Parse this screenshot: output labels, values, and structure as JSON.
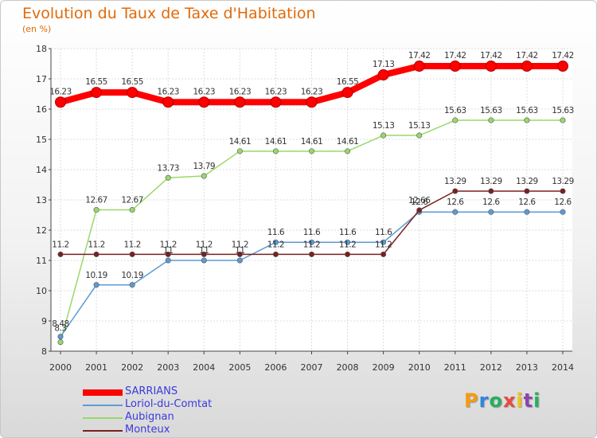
{
  "chart_data": {
    "type": "line",
    "title": "Evolution du Taux de Taxe d'Habitation",
    "unit_label": "(en %)",
    "x": [
      "2000",
      "2001",
      "2002",
      "2003",
      "2004",
      "2005",
      "2006",
      "2007",
      "2008",
      "2009",
      "2010",
      "2011",
      "2012",
      "2013",
      "2014"
    ],
    "ylim": [
      8,
      18
    ],
    "yticks": [
      8,
      9,
      10,
      11,
      12,
      13,
      14,
      15,
      16,
      17,
      18
    ],
    "grid": true,
    "legend_position": "bottom-left",
    "series": [
      {
        "name": "SARRIANS",
        "color": "#ff0000",
        "values": [
          16.23,
          16.55,
          16.55,
          16.23,
          16.23,
          16.23,
          16.23,
          16.23,
          16.55,
          17.13,
          17.42,
          17.42,
          17.42,
          17.42,
          17.42
        ],
        "labels": [
          "16.23",
          "16.55",
          "16.55",
          "16.23",
          "16.23",
          "16.23",
          "16.23",
          "16.23",
          "16.55",
          "17.13",
          "17.42",
          "17.42",
          "17.42",
          "17.42",
          "17.42"
        ]
      },
      {
        "name": "Loriol-du-Comtat",
        "color": "#5b9bd5",
        "values": [
          8.48,
          10.19,
          10.19,
          11,
          11,
          11,
          11.6,
          11.6,
          11.6,
          11.6,
          12.6,
          12.6,
          12.6,
          12.6,
          12.6
        ],
        "labels": [
          "8.48",
          "10.19",
          "10.19",
          "11",
          "11",
          "11",
          "11.6",
          "11.6",
          "11.6",
          "11.6",
          "12.6",
          "12.6",
          "12.6",
          "12.6",
          "12.6"
        ]
      },
      {
        "name": "Aubignan",
        "color": "#9ad86a",
        "values": [
          8.3,
          12.67,
          12.67,
          13.73,
          13.79,
          14.61,
          14.61,
          14.61,
          14.61,
          15.13,
          15.13,
          15.63,
          15.63,
          15.63,
          15.63
        ],
        "labels": [
          "8.3",
          "12.67",
          "12.67",
          "13.73",
          "13.79",
          "14.61",
          "14.61",
          "14.61",
          "14.61",
          "15.13",
          "15.13",
          "15.63",
          "15.63",
          "15.63",
          "15.63"
        ]
      },
      {
        "name": "Monteux",
        "color": "#7a2020",
        "values": [
          11.2,
          11.2,
          11.2,
          11.2,
          11.2,
          11.2,
          11.2,
          11.2,
          11.2,
          11.2,
          12.66,
          13.29,
          13.29,
          13.29,
          13.29
        ],
        "labels": [
          "11.2",
          "11.2",
          "11.2",
          "11.2",
          "11.2",
          "11.2",
          "11.2",
          "11.2",
          "11.2",
          "11.2",
          "12.66",
          "13.29",
          "13.29",
          "13.29",
          "13.29"
        ]
      }
    ]
  },
  "logo": {
    "letters": [
      "P",
      "r",
      "o",
      "x",
      "i",
      "t",
      "i"
    ],
    "colors": [
      "#f39c12",
      "#2e86de",
      "#27ae60",
      "#e74c3c",
      "#f1c40f",
      "#8e44ad",
      "#27ae60"
    ]
  }
}
